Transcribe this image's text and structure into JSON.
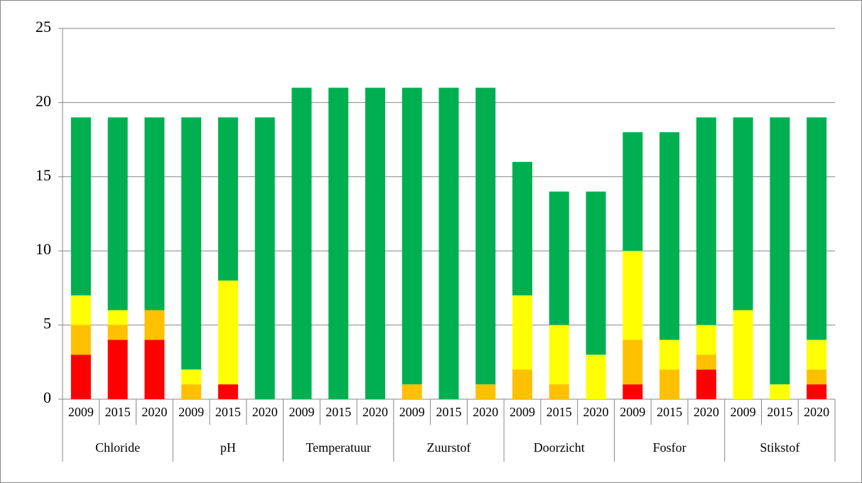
{
  "chart_data": {
    "type": "stacked_bar",
    "categories": [
      "2009",
      "2015",
      "2020",
      "2009",
      "2015",
      "2020",
      "2009",
      "2015",
      "2020",
      "2009",
      "2015",
      "2020",
      "2009",
      "2015",
      "2020",
      "2009",
      "2015",
      "2020",
      "2009",
      "2015",
      "2020"
    ],
    "groups": [
      "Chloride",
      "pH",
      "Temperatuur",
      "Zuurstof",
      "Doorzicht",
      "Fosfor",
      "Stikstof"
    ],
    "series": [
      {
        "color": "#ff0000",
        "values": [
          3,
          4,
          4,
          0,
          1,
          0,
          0,
          0,
          0,
          0,
          0,
          0,
          0,
          0,
          0,
          1,
          0,
          2,
          0,
          0,
          1
        ]
      },
      {
        "color": "#ffc000",
        "values": [
          2,
          1,
          2,
          1,
          0,
          0,
          0,
          0,
          0,
          1,
          0,
          1,
          2,
          1,
          0,
          3,
          2,
          1,
          0,
          0,
          1
        ]
      },
      {
        "color": "#ffff00",
        "values": [
          2,
          1,
          0,
          1,
          7,
          0,
          0,
          0,
          0,
          0,
          0,
          0,
          5,
          4,
          3,
          6,
          2,
          2,
          6,
          1,
          2
        ]
      },
      {
        "color": "#00b050",
        "values": [
          12,
          13,
          13,
          17,
          11,
          19,
          21,
          21,
          21,
          20,
          21,
          20,
          9,
          9,
          11,
          8,
          14,
          14,
          13,
          18,
          15
        ]
      }
    ],
    "ylim": [
      0,
      25
    ],
    "yticks": [
      0,
      5,
      10,
      15,
      20,
      25
    ],
    "grid": true
  }
}
